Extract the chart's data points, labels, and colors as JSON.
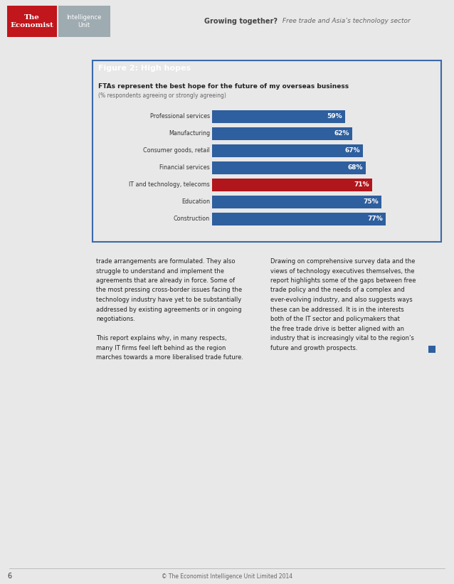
{
  "page_bg": "#e8e8e8",
  "header_bg": "#b8c4cb",
  "economist_red": "#c0161c",
  "economist_text": "The\nEconomist",
  "intel_unit_bg": "#9eabb0",
  "intel_unit_text": "Intelligence\nUnit",
  "header_title_bold": "Growing together?",
  "header_title_rest": " Free trade and Asia’s technology sector",
  "chart_box_bg": "#ffffff",
  "chart_box_border": "#3a6aaa",
  "figure_title_bg": "#2e5f9e",
  "figure_title_text": "Figure 2: High hopes",
  "chart_title_bold": "FTAs represent the best hope for the future of my overseas business",
  "chart_subtitle": "(% respondents agreeing or strongly agreeing)",
  "categories": [
    "Professional services",
    "Manufacturing",
    "Consumer goods, retail",
    "Financial services",
    "IT and technology, telecoms",
    "Education",
    "Construction"
  ],
  "values": [
    59,
    62,
    67,
    68,
    71,
    75,
    77
  ],
  "bar_colors": [
    "#2e5f9e",
    "#2e5f9e",
    "#2e5f9e",
    "#2e5f9e",
    "#b0161c",
    "#2e5f9e",
    "#2e5f9e"
  ],
  "text_col1_lines": [
    "trade arrangements are formulated. They also",
    "struggle to understand and implement the",
    "agreements that are already in force. Some of",
    "the most pressing cross-border issues facing the",
    "technology industry have yet to be substantially",
    "addressed by existing agreements or in ongoing",
    "negotiations.",
    "",
    "This report explains why, in many respects,",
    "many IT firms feel left behind as the region",
    "marches towards a more liberalised trade future."
  ],
  "text_col2_lines": [
    "Drawing on comprehensive survey data and the",
    "views of technology executives themselves, the",
    "report highlights some of the gaps between free",
    "trade policy and the needs of a complex and",
    "ever-evolving industry, and also suggests ways",
    "these can be addressed. It is in the interests",
    "both of the IT sector and policymakers that",
    "the free trade drive is better aligned with an",
    "industry that is increasingly vital to the region’s",
    "future and growth prospects."
  ],
  "square_color": "#2e5f9e",
  "footer_line_color": "#aaaaaa",
  "footer_page_num": "6",
  "footer_copy": "© The Economist Intelligence Unit Limited 2014"
}
